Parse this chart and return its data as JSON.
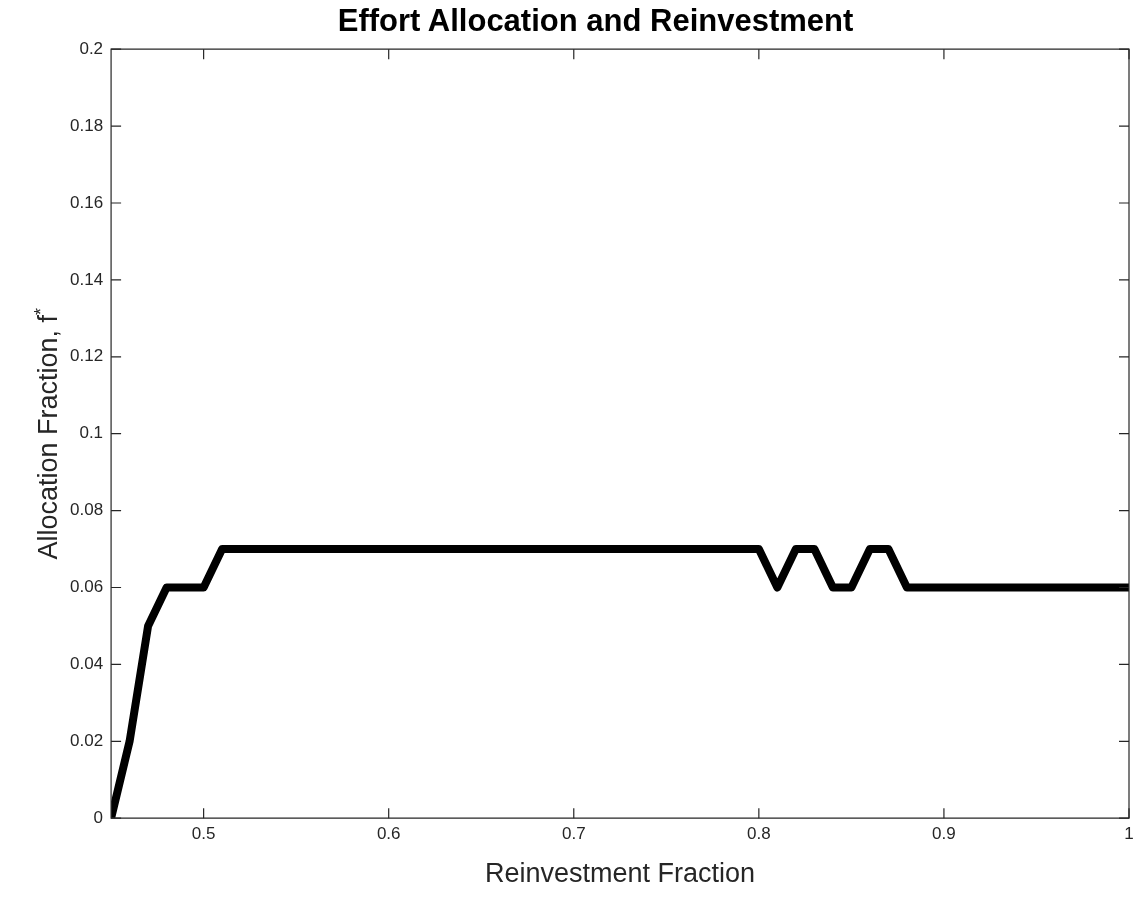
{
  "chart_data": {
    "type": "line",
    "title": "Effort Allocation and Reinvestment",
    "xlabel": "Reinvestment Fraction",
    "ylabel": "Allocation Fraction, f$^{*}$",
    "x": [
      0.45,
      0.46,
      0.47,
      0.48,
      0.5,
      0.51,
      0.8,
      0.81,
      0.82,
      0.83,
      0.84,
      0.85,
      0.86,
      0.87,
      0.88,
      1.0
    ],
    "series": [
      {
        "color": "#000000",
        "values": [
          0,
          0.02,
          0.05,
          0.06,
          0.06,
          0.07,
          0.07,
          0.06,
          0.07,
          0.07,
          0.06,
          0.06,
          0.07,
          0.07,
          0.06,
          0.06
        ]
      }
    ],
    "xlim": [
      0.45,
      1
    ],
    "xticks": [
      0.5,
      0.6,
      0.7,
      0.8,
      0.9,
      1
    ],
    "ylim": [
      0,
      0.2
    ],
    "yticks": [
      0,
      0.02,
      0.04,
      0.06,
      0.08,
      0.1,
      0.12,
      0.14,
      0.16,
      0.18,
      0.2
    ],
    "grid": false,
    "legend": false,
    "marker": "none",
    "line_style": "solid"
  }
}
